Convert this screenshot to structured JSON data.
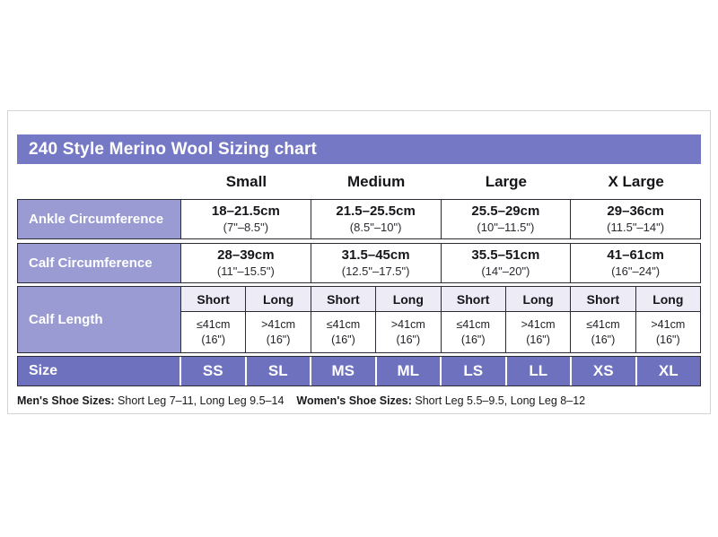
{
  "chart_data": {
    "type": "table",
    "title": "240 Style Merino Wool Sizing chart",
    "size_columns": [
      "Small",
      "Medium",
      "Large",
      "X Large"
    ],
    "measurement_rows": [
      {
        "label": "Ankle Circumference",
        "values": [
          {
            "cm": "18–21.5cm",
            "inches": "(7\"–8.5\")"
          },
          {
            "cm": "21.5–25.5cm",
            "inches": "(8.5\"–10\")"
          },
          {
            "cm": "25.5–29cm",
            "inches": "(10\"–11.5\")"
          },
          {
            "cm": "29–36cm",
            "inches": "(11.5\"–14\")"
          }
        ]
      },
      {
        "label": "Calf Circumference",
        "values": [
          {
            "cm": "28–39cm",
            "inches": "(11\"–15.5\")"
          },
          {
            "cm": "31.5–45cm",
            "inches": "(12.5\"–17.5\")"
          },
          {
            "cm": "35.5–51cm",
            "inches": "(14\"–20\")"
          },
          {
            "cm": "41–61cm",
            "inches": "(16\"–24\")"
          }
        ]
      }
    ],
    "calf_length": {
      "label": "Calf Length",
      "columns": [
        {
          "header": "Short",
          "value": "≤41cm",
          "note": "(16\")"
        },
        {
          "header": "Long",
          "value": ">41cm",
          "note": "(16\")"
        },
        {
          "header": "Short",
          "value": "≤41cm",
          "note": "(16\")"
        },
        {
          "header": "Long",
          "value": ">41cm",
          "note": "(16\")"
        },
        {
          "header": "Short",
          "value": "≤41cm",
          "note": "(16\")"
        },
        {
          "header": "Long",
          "value": ">41cm",
          "note": "(16\")"
        },
        {
          "header": "Short",
          "value": "≤41cm",
          "note": "(16\")"
        },
        {
          "header": "Long",
          "value": ">41cm",
          "note": "(16\")"
        }
      ]
    },
    "size_row": {
      "label": "Size",
      "values": [
        "SS",
        "SL",
        "MS",
        "ML",
        "LS",
        "LL",
        "XS",
        "XL"
      ]
    },
    "footnotes": {
      "mens_label": "Men's Shoe Sizes:",
      "mens_text": "Short Leg 7–11, Long Leg 9.5–14",
      "womens_label": "Women's Shoe Sizes:",
      "womens_text": "Short Leg 5.5–9.5, Long Leg 8–12"
    },
    "colors": {
      "title_bar": "#7579c5",
      "row_label": "#999bd2",
      "size_row": "#6d71be",
      "subheader_bg": "#ecebf6",
      "cell_border": "#2c2c34",
      "card_border": "#d4d4d8"
    }
  }
}
